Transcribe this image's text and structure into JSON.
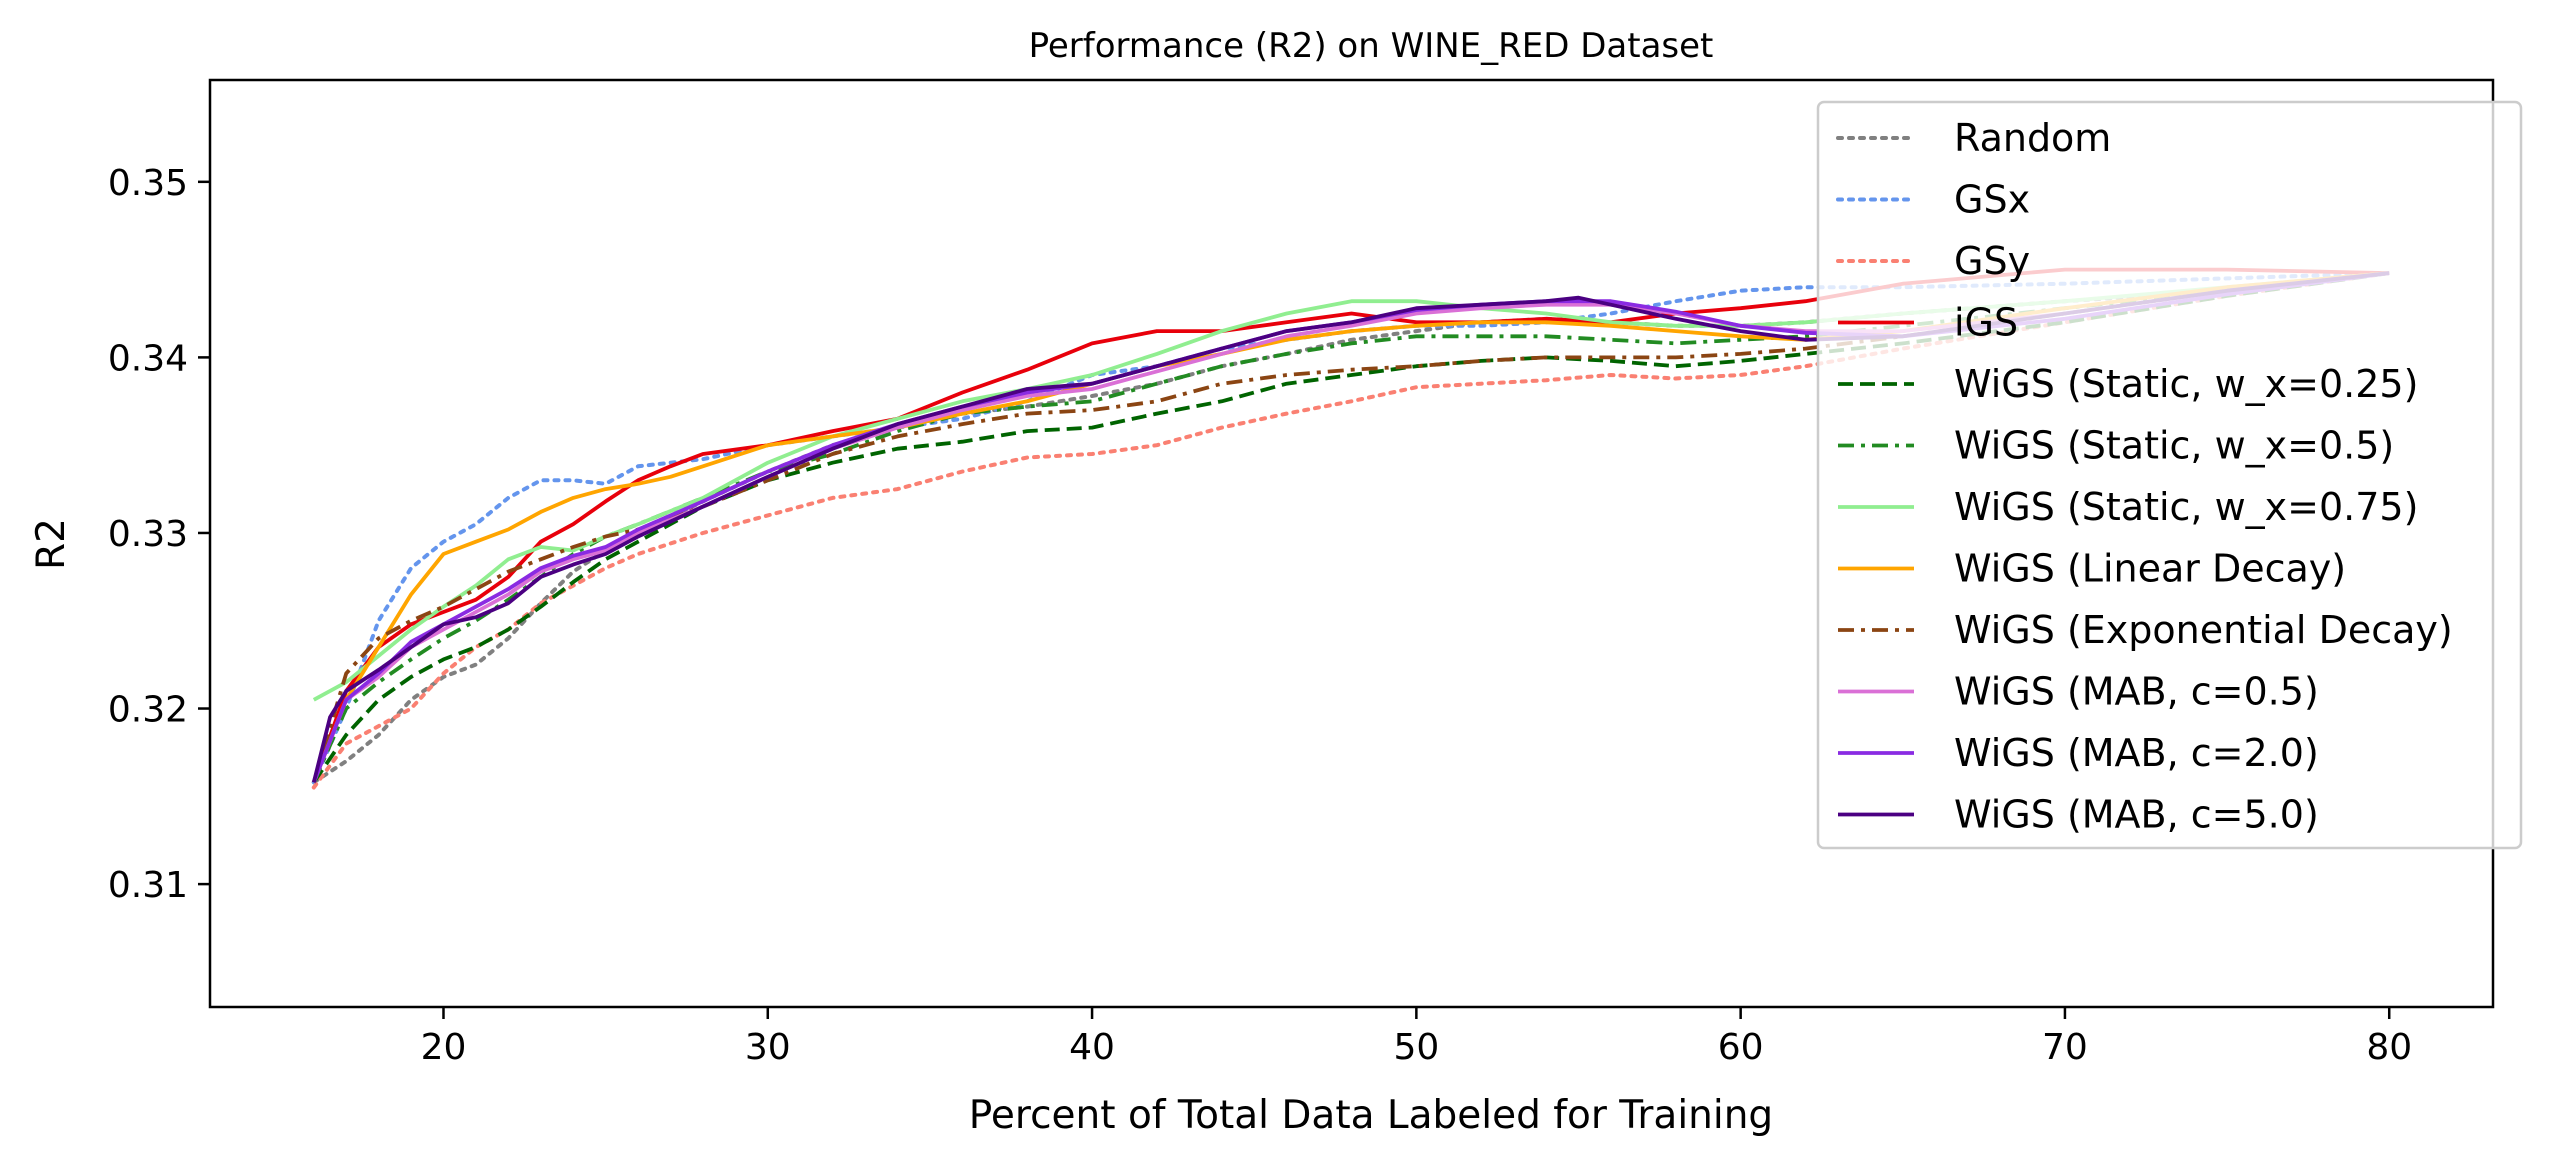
{
  "chart_data": {
    "type": "line",
    "title": "Performance (R2) on WINE_RED Dataset",
    "xlabel": "Percent of Total Data Labeled for Training",
    "ylabel": "R2",
    "xlim": [
      12.8,
      83.2
    ],
    "ylim": [
      0.303,
      0.3558
    ],
    "xticks": [
      20,
      30,
      40,
      50,
      60,
      70,
      80
    ],
    "yticks": [
      0.31,
      0.32,
      0.33,
      0.34,
      0.35
    ],
    "xtick_labels": [
      "20",
      "30",
      "40",
      "50",
      "60",
      "70",
      "80"
    ],
    "ytick_labels": [
      "0.31",
      "0.32",
      "0.33",
      "0.34",
      "0.35"
    ],
    "grid": false,
    "legend_position": "top-right",
    "series": [
      {
        "name": "Random",
        "color": "#808080",
        "style": "dotted",
        "x": [
          16,
          17,
          18,
          19,
          20,
          21,
          22,
          23,
          24,
          25,
          26,
          28,
          30,
          32,
          34,
          36,
          38,
          40,
          42,
          44,
          46,
          48,
          50,
          52,
          54,
          56,
          58,
          60,
          62,
          65,
          70,
          75,
          80
        ],
        "y": [
          0.3158,
          0.317,
          0.3185,
          0.3205,
          0.3218,
          0.3225,
          0.324,
          0.326,
          0.3278,
          0.329,
          0.33,
          0.3318,
          0.3335,
          0.335,
          0.336,
          0.3368,
          0.3372,
          0.3378,
          0.3385,
          0.3395,
          0.3402,
          0.341,
          0.3415,
          0.342,
          0.3422,
          0.342,
          0.3418,
          0.3418,
          0.342,
          0.3425,
          0.3432,
          0.3438,
          0.3448
        ]
      },
      {
        "name": "GSx",
        "color": "#6495ed",
        "style": "dotted",
        "x": [
          16,
          17,
          18,
          19,
          20,
          21,
          22,
          23,
          24,
          25,
          26,
          27,
          28,
          30,
          32,
          34,
          36,
          38,
          40,
          42,
          44,
          46,
          48,
          50,
          52,
          54,
          56,
          58,
          60,
          62,
          65,
          70,
          75,
          80
        ],
        "y": [
          0.3158,
          0.32,
          0.325,
          0.328,
          0.3295,
          0.3305,
          0.332,
          0.333,
          0.333,
          0.3328,
          0.3338,
          0.334,
          0.3342,
          0.335,
          0.3355,
          0.336,
          0.3365,
          0.3375,
          0.339,
          0.3395,
          0.3405,
          0.341,
          0.3415,
          0.3418,
          0.3418,
          0.342,
          0.3425,
          0.3432,
          0.3438,
          0.344,
          0.344,
          0.3442,
          0.3445,
          0.3448
        ]
      },
      {
        "name": "GSy",
        "color": "#fa8072",
        "style": "dotted",
        "x": [
          16,
          17,
          18,
          19,
          20,
          21,
          22,
          23,
          24,
          25,
          26,
          28,
          30,
          32,
          34,
          36,
          38,
          40,
          42,
          44,
          46,
          48,
          50,
          52,
          54,
          56,
          58,
          60,
          62,
          65,
          70,
          75,
          80
        ],
        "y": [
          0.3155,
          0.318,
          0.319,
          0.32,
          0.322,
          0.3235,
          0.3245,
          0.326,
          0.327,
          0.328,
          0.3288,
          0.33,
          0.331,
          0.332,
          0.3325,
          0.3335,
          0.3343,
          0.3345,
          0.335,
          0.336,
          0.3368,
          0.3375,
          0.3383,
          0.3385,
          0.3387,
          0.339,
          0.3388,
          0.339,
          0.3395,
          0.3405,
          0.342,
          0.3435,
          0.3448
        ]
      },
      {
        "name": "iGS",
        "color": "#e8000b",
        "style": "solid",
        "x": [
          16,
          17,
          18,
          19,
          20,
          21,
          22,
          23,
          24,
          25,
          26,
          27,
          28,
          30,
          32,
          34,
          36,
          38,
          40,
          42,
          44,
          46,
          48,
          50,
          52,
          54,
          56,
          58,
          60,
          62,
          65,
          70,
          75,
          80
        ],
        "y": [
          0.3158,
          0.321,
          0.3235,
          0.3248,
          0.3255,
          0.3262,
          0.3275,
          0.3295,
          0.3305,
          0.3318,
          0.333,
          0.3338,
          0.3345,
          0.335,
          0.3358,
          0.3365,
          0.338,
          0.3393,
          0.3408,
          0.3415,
          0.3415,
          0.342,
          0.3425,
          0.342,
          0.342,
          0.3422,
          0.342,
          0.3425,
          0.3428,
          0.3432,
          0.3442,
          0.345,
          0.345,
          0.3448
        ]
      },
      {
        "name": "WiGS (Static, w_x=0.25)",
        "color": "#006400",
        "style": "dashed",
        "x": [
          16,
          17,
          18,
          19,
          20,
          21,
          22,
          23,
          24,
          25,
          26,
          28,
          30,
          32,
          34,
          36,
          38,
          40,
          42,
          44,
          46,
          48,
          50,
          52,
          54,
          56,
          58,
          60,
          62,
          65,
          70,
          75,
          80
        ],
        "y": [
          0.3158,
          0.3185,
          0.3205,
          0.3218,
          0.3228,
          0.3235,
          0.3245,
          0.3258,
          0.3272,
          0.3285,
          0.3295,
          0.3315,
          0.333,
          0.334,
          0.3348,
          0.3352,
          0.3358,
          0.336,
          0.3368,
          0.3375,
          0.3385,
          0.339,
          0.3395,
          0.3398,
          0.34,
          0.3398,
          0.3395,
          0.3398,
          0.3402,
          0.3408,
          0.342,
          0.3435,
          0.3448
        ]
      },
      {
        "name": "WiGS (Static, w_x=0.5)",
        "color": "#228b22",
        "style": "dashdot",
        "x": [
          16,
          17,
          18,
          19,
          20,
          21,
          22,
          23,
          24,
          25,
          26,
          28,
          30,
          32,
          34,
          36,
          38,
          40,
          42,
          44,
          46,
          48,
          50,
          52,
          54,
          56,
          58,
          60,
          62,
          65,
          70,
          75,
          80
        ],
        "y": [
          0.3158,
          0.32,
          0.3215,
          0.3228,
          0.324,
          0.325,
          0.3262,
          0.3275,
          0.3288,
          0.3298,
          0.3305,
          0.332,
          0.3335,
          0.3345,
          0.3358,
          0.3368,
          0.3372,
          0.3375,
          0.3385,
          0.3395,
          0.3402,
          0.3408,
          0.3412,
          0.3412,
          0.3412,
          0.341,
          0.3408,
          0.341,
          0.3412,
          0.3418,
          0.3428,
          0.3438,
          0.3448
        ]
      },
      {
        "name": "WiGS (Static, w_x=0.75)",
        "color": "#90ee90",
        "style": "solid",
        "x": [
          16,
          17,
          18,
          19,
          20,
          21,
          22,
          23,
          24,
          25,
          26,
          28,
          30,
          32,
          34,
          36,
          38,
          40,
          42,
          44,
          46,
          48,
          50,
          52,
          54,
          56,
          58,
          60,
          62,
          65,
          70,
          75,
          80
        ],
        "y": [
          0.3205,
          0.3215,
          0.323,
          0.3245,
          0.3258,
          0.327,
          0.3285,
          0.3292,
          0.329,
          0.3298,
          0.3305,
          0.332,
          0.334,
          0.3355,
          0.3365,
          0.3375,
          0.3382,
          0.339,
          0.3402,
          0.3415,
          0.3425,
          0.3432,
          0.3432,
          0.3428,
          0.3425,
          0.342,
          0.3418,
          0.3418,
          0.342,
          0.3425,
          0.3432,
          0.344,
          0.3448
        ]
      },
      {
        "name": "WiGS (Linear Decay)",
        "color": "#ffa500",
        "style": "solid",
        "x": [
          16,
          17,
          18,
          19,
          20,
          21,
          22,
          23,
          24,
          25,
          26,
          27,
          28,
          30,
          32,
          34,
          36,
          38,
          40,
          42,
          44,
          46,
          48,
          50,
          52,
          54,
          56,
          58,
          60,
          62,
          65,
          70,
          75,
          80
        ],
        "y": [
          0.3158,
          0.3205,
          0.3235,
          0.3265,
          0.3288,
          0.3295,
          0.3302,
          0.3312,
          0.332,
          0.3325,
          0.3328,
          0.3332,
          0.3338,
          0.335,
          0.3355,
          0.336,
          0.3368,
          0.3375,
          0.3385,
          0.3395,
          0.3402,
          0.341,
          0.3415,
          0.3418,
          0.342,
          0.342,
          0.3418,
          0.3415,
          0.3412,
          0.341,
          0.3415,
          0.3428,
          0.344,
          0.3448
        ]
      },
      {
        "name": "WiGS (Exponential Decay)",
        "color": "#8b4513",
        "style": "dashdot",
        "x": [
          16,
          17,
          18,
          19,
          20,
          21,
          22,
          23,
          24,
          25,
          26,
          28,
          30,
          32,
          34,
          36,
          38,
          40,
          42,
          44,
          46,
          48,
          50,
          52,
          54,
          56,
          58,
          60,
          62,
          65,
          70,
          75,
          80
        ],
        "y": [
          0.3158,
          0.322,
          0.324,
          0.325,
          0.3258,
          0.3268,
          0.3278,
          0.3285,
          0.3292,
          0.3298,
          0.3302,
          0.3315,
          0.333,
          0.3345,
          0.3355,
          0.3362,
          0.3368,
          0.337,
          0.3375,
          0.3385,
          0.339,
          0.3393,
          0.3395,
          0.3398,
          0.34,
          0.34,
          0.34,
          0.3402,
          0.3405,
          0.3412,
          0.3425,
          0.3438,
          0.3448
        ]
      },
      {
        "name": "WiGS (MAB, c=0.5)",
        "color": "#da70d6",
        "style": "solid",
        "x": [
          16,
          17,
          18,
          19,
          20,
          21,
          22,
          23,
          24,
          25,
          26,
          28,
          30,
          32,
          34,
          36,
          38,
          40,
          42,
          44,
          46,
          48,
          50,
          52,
          54,
          56,
          58,
          60,
          62,
          65,
          70,
          75,
          80
        ],
        "y": [
          0.3158,
          0.3205,
          0.3218,
          0.3235,
          0.3245,
          0.3255,
          0.3265,
          0.3278,
          0.3285,
          0.329,
          0.33,
          0.3315,
          0.3332,
          0.3348,
          0.336,
          0.337,
          0.3378,
          0.3382,
          0.3392,
          0.3402,
          0.3412,
          0.3418,
          0.3425,
          0.3428,
          0.343,
          0.343,
          0.3425,
          0.3418,
          0.3415,
          0.3415,
          0.3425,
          0.3438,
          0.3448
        ]
      },
      {
        "name": "WiGS (MAB, c=2.0)",
        "color": "#8a2be2",
        "style": "solid",
        "x": [
          16,
          17,
          18,
          19,
          20,
          21,
          22,
          23,
          24,
          25,
          26,
          28,
          30,
          32,
          34,
          36,
          38,
          40,
          42,
          44,
          46,
          48,
          50,
          52,
          54,
          56,
          58,
          60,
          62,
          65,
          70,
          75,
          80
        ],
        "y": [
          0.3158,
          0.3205,
          0.322,
          0.3238,
          0.3248,
          0.3258,
          0.3268,
          0.328,
          0.3287,
          0.3292,
          0.3302,
          0.3318,
          0.3335,
          0.335,
          0.3362,
          0.3372,
          0.338,
          0.3385,
          0.3395,
          0.3405,
          0.3415,
          0.342,
          0.3427,
          0.343,
          0.3432,
          0.3432,
          0.3426,
          0.3418,
          0.3414,
          0.3412,
          0.3422,
          0.3436,
          0.3448
        ]
      },
      {
        "name": "WiGS (MAB, c=5.0)",
        "color": "#4b0082",
        "style": "solid",
        "x": [
          16,
          16.5,
          17,
          18,
          19,
          20,
          21,
          22,
          23,
          24,
          25,
          26,
          28,
          30,
          32,
          34,
          36,
          38,
          40,
          42,
          44,
          46,
          48,
          50,
          52,
          54,
          55,
          56,
          58,
          60,
          62,
          65,
          70,
          75,
          80
        ],
        "y": [
          0.3158,
          0.3195,
          0.321,
          0.3222,
          0.3235,
          0.3248,
          0.3252,
          0.326,
          0.3275,
          0.3282,
          0.3288,
          0.3298,
          0.3315,
          0.3332,
          0.3348,
          0.3362,
          0.3372,
          0.3382,
          0.3385,
          0.3395,
          0.3405,
          0.3415,
          0.342,
          0.3428,
          0.343,
          0.3432,
          0.3434,
          0.343,
          0.3422,
          0.3415,
          0.341,
          0.3412,
          0.3425,
          0.3438,
          0.3448
        ]
      }
    ]
  }
}
